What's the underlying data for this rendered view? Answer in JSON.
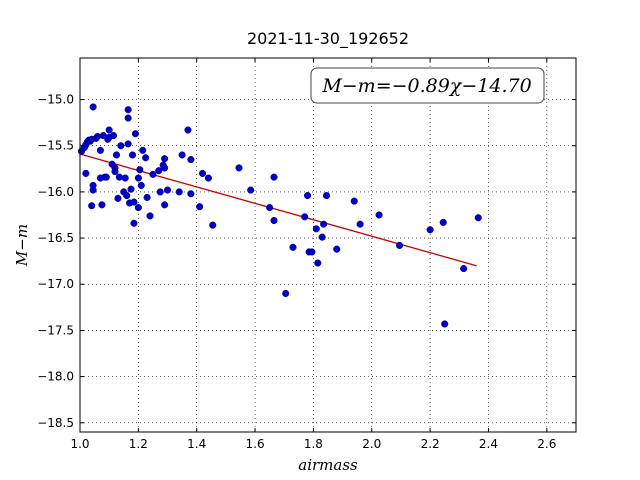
{
  "chart_data": {
    "type": "scatter",
    "title": "2021-11-30_192652",
    "xlabel": "airmass",
    "ylabel": "M−m",
    "xlim": [
      1.0,
      2.7
    ],
    "ylim": [
      -18.6,
      -14.55
    ],
    "y_inverted": true,
    "grid": true,
    "xticks": [
      1.0,
      1.2,
      1.4,
      1.6,
      1.8,
      2.0,
      2.2,
      2.4,
      2.6
    ],
    "xtick_labels": [
      "1.0",
      "1.2",
      "1.4",
      "1.6",
      "1.8",
      "2.0",
      "2.2",
      "2.4",
      "2.6"
    ],
    "yticks": [
      -15.0,
      -15.5,
      -16.0,
      -16.5,
      -17.0,
      -17.5,
      -18.0,
      -18.5
    ],
    "ytick_labels": [
      "−15.0",
      "−15.5",
      "−16.0",
      "−16.5",
      "−17.0",
      "−17.5",
      "−18.0",
      "−18.5"
    ],
    "annotation": "M−m=−0.89χ−14.70",
    "point_color": "#0000cc",
    "fit_color": "#cc0000",
    "fit": {
      "slope": -0.89,
      "intercept": -14.7,
      "x_range": [
        1.0,
        2.36
      ]
    },
    "points": [
      [
        1.005,
        -15.56
      ],
      [
        1.015,
        -15.52
      ],
      [
        1.02,
        -15.49
      ],
      [
        1.02,
        -15.8
      ],
      [
        1.025,
        -15.46
      ],
      [
        1.03,
        -15.44
      ],
      [
        1.035,
        -15.45
      ],
      [
        1.04,
        -15.43
      ],
      [
        1.04,
        -16.15
      ],
      [
        1.045,
        -15.98
      ],
      [
        1.045,
        -15.93
      ],
      [
        1.045,
        -15.08
      ],
      [
        1.055,
        -15.42
      ],
      [
        1.06,
        -15.4
      ],
      [
        1.07,
        -15.55
      ],
      [
        1.07,
        -15.85
      ],
      [
        1.075,
        -16.14
      ],
      [
        1.08,
        -15.39
      ],
      [
        1.085,
        -15.84
      ],
      [
        1.09,
        -15.84
      ],
      [
        1.095,
        -15.43
      ],
      [
        1.1,
        -15.41
      ],
      [
        1.1,
        -15.33
      ],
      [
        1.11,
        -15.7
      ],
      [
        1.115,
        -15.39
      ],
      [
        1.12,
        -15.74
      ],
      [
        1.12,
        -15.78
      ],
      [
        1.125,
        -15.6
      ],
      [
        1.13,
        -16.07
      ],
      [
        1.135,
        -15.84
      ],
      [
        1.14,
        -15.5
      ],
      [
        1.15,
        -16.0
      ],
      [
        1.155,
        -15.85
      ],
      [
        1.16,
        -16.04
      ],
      [
        1.165,
        -15.48
      ],
      [
        1.165,
        -15.2
      ],
      [
        1.165,
        -15.11
      ],
      [
        1.17,
        -16.12
      ],
      [
        1.175,
        -15.97
      ],
      [
        1.18,
        -15.6
      ],
      [
        1.185,
        -16.11
      ],
      [
        1.185,
        -16.34
      ],
      [
        1.19,
        -15.37
      ],
      [
        1.2,
        -15.85
      ],
      [
        1.2,
        -16.17
      ],
      [
        1.205,
        -15.76
      ],
      [
        1.21,
        -15.93
      ],
      [
        1.215,
        -15.55
      ],
      [
        1.225,
        -15.63
      ],
      [
        1.23,
        -16.06
      ],
      [
        1.24,
        -16.26
      ],
      [
        1.25,
        -15.81
      ],
      [
        1.27,
        -15.77
      ],
      [
        1.275,
        -16.0
      ],
      [
        1.285,
        -15.71
      ],
      [
        1.29,
        -15.74
      ],
      [
        1.29,
        -16.14
      ],
      [
        1.29,
        -15.64
      ],
      [
        1.3,
        -15.98
      ],
      [
        1.34,
        -16.0
      ],
      [
        1.35,
        -15.6
      ],
      [
        1.37,
        -15.33
      ],
      [
        1.38,
        -16.02
      ],
      [
        1.38,
        -15.65
      ],
      [
        1.41,
        -16.16
      ],
      [
        1.42,
        -15.8
      ],
      [
        1.44,
        -15.85
      ],
      [
        1.455,
        -16.36
      ],
      [
        1.545,
        -15.74
      ],
      [
        1.585,
        -15.98
      ],
      [
        1.65,
        -16.17
      ],
      [
        1.665,
        -15.84
      ],
      [
        1.665,
        -16.31
      ],
      [
        1.705,
        -17.1
      ],
      [
        1.73,
        -16.6
      ],
      [
        1.77,
        -16.27
      ],
      [
        1.78,
        -16.04
      ],
      [
        1.785,
        -16.65
      ],
      [
        1.795,
        -16.65
      ],
      [
        1.81,
        -16.4
      ],
      [
        1.815,
        -16.77
      ],
      [
        1.83,
        -16.49
      ],
      [
        1.835,
        -16.35
      ],
      [
        1.845,
        -16.04
      ],
      [
        1.88,
        -16.62
      ],
      [
        1.94,
        -16.1
      ],
      [
        1.96,
        -16.35
      ],
      [
        2.025,
        -16.25
      ],
      [
        2.095,
        -16.58
      ],
      [
        2.2,
        -16.41
      ],
      [
        2.245,
        -16.33
      ],
      [
        2.25,
        -17.43
      ],
      [
        2.315,
        -16.83
      ],
      [
        2.365,
        -16.28
      ]
    ]
  }
}
